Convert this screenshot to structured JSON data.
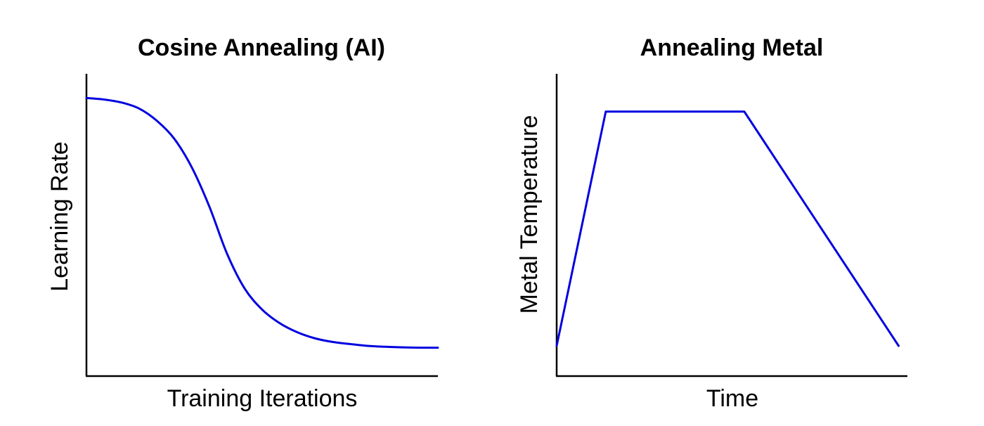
{
  "line_color": "#0000e0",
  "axis_color": "#000000",
  "chart_data": [
    {
      "type": "line",
      "title": "Cosine Annealing (AI)",
      "xlabel": "Training Iterations",
      "ylabel": "Learning Rate",
      "xlim": [
        0,
        1
      ],
      "ylim": [
        0,
        1
      ],
      "ticks": false,
      "grid": false,
      "legend": "none",
      "series": [
        {
          "x": [
            0,
            0.05,
            0.1,
            0.15,
            0.2,
            0.25,
            0.3,
            0.35,
            0.4,
            0.45,
            0.5,
            0.55,
            0.6,
            0.65,
            0.7,
            0.75,
            0.8,
            0.85,
            0.9,
            0.95,
            1.0
          ],
          "y": [
            0.92,
            0.915,
            0.905,
            0.885,
            0.845,
            0.785,
            0.69,
            0.56,
            0.405,
            0.29,
            0.22,
            0.175,
            0.145,
            0.125,
            0.113,
            0.106,
            0.1,
            0.097,
            0.095,
            0.094,
            0.094
          ]
        }
      ]
    },
    {
      "type": "line",
      "title": "Annealing Metal",
      "xlabel": "Time",
      "ylabel": "Metal Temperature",
      "xlim": [
        0,
        1
      ],
      "ylim": [
        0,
        1
      ],
      "ticks": false,
      "grid": false,
      "legend": "none",
      "series": [
        {
          "x": [
            0,
            0.14,
            0.535,
            0.975
          ],
          "y": [
            0.1,
            0.875,
            0.875,
            0.1
          ]
        }
      ]
    }
  ]
}
